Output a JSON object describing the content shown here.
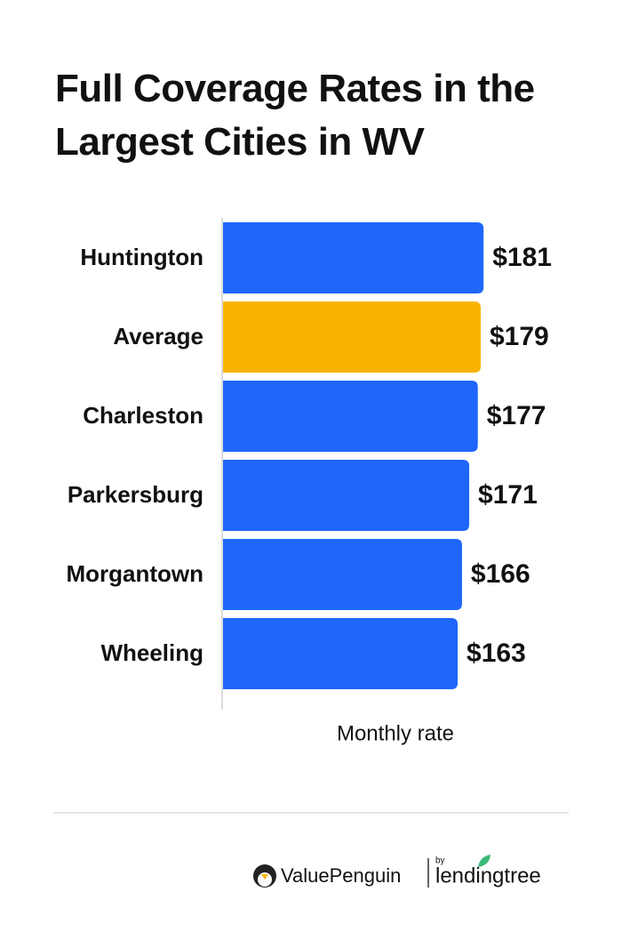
{
  "chart_data": {
    "type": "hbar",
    "title": "Full Coverage Rates in the Largest Cities in WV",
    "categories": [
      "Huntington",
      "Average",
      "Charleston",
      "Parkersburg",
      "Morgantown",
      "Wheeling"
    ],
    "values": [
      181,
      179,
      177,
      171,
      166,
      163
    ],
    "value_labels": [
      "$181",
      "$179",
      "$177",
      "$171",
      "$166",
      "$163"
    ],
    "colors": [
      "#1f66fb",
      "#f8b400",
      "#1f66fb",
      "#1f66fb",
      "#1f66fb",
      "#1f66fb"
    ],
    "xlim": [
      0,
      200
    ],
    "x_label": "Monthly rate"
  },
  "footer": {
    "brand": "ValuePenguin",
    "by": "by",
    "partner": "lendingtree"
  }
}
